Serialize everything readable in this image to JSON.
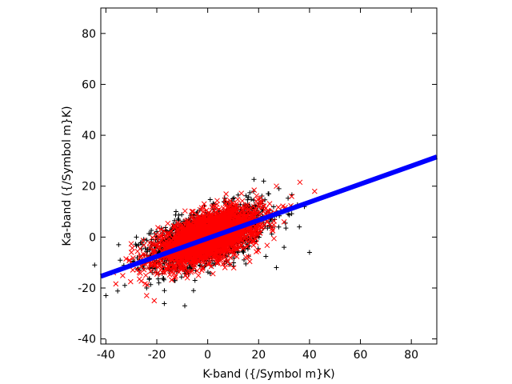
{
  "chart_data": {
    "type": "scatter",
    "title": "",
    "xlabel": "K-band ({/Symbol m}K)",
    "ylabel": "Ka-band ({/Symbol m}K)",
    "xlim": [
      -42,
      90
    ],
    "ylim": [
      -42,
      90
    ],
    "xticks": [
      -40,
      -20,
      0,
      20,
      40,
      60,
      80
    ],
    "yticks": [
      -40,
      -20,
      0,
      20,
      40,
      60,
      80
    ],
    "grid": false,
    "legend": "none",
    "series": [
      {
        "marker": "plus",
        "color": "#000000",
        "distribution": {
          "count": 2000,
          "center": [
            0,
            0
          ],
          "sigma_x": 11,
          "sigma_y": 6,
          "correlation": 0.55
        },
        "outliers": [
          [
            -40,
            -23
          ],
          [
            -35,
            -3
          ],
          [
            -28,
            0
          ],
          [
            -24,
            -20
          ],
          [
            -17,
            -21
          ],
          [
            -9,
            -27
          ],
          [
            -5,
            -17
          ],
          [
            18,
            18
          ],
          [
            22,
            22
          ],
          [
            24,
            17
          ],
          [
            28,
            19
          ],
          [
            30,
            -4
          ],
          [
            33,
            12
          ],
          [
            36,
            4
          ],
          [
            38,
            12
          ],
          [
            40,
            -6
          ],
          [
            27,
            -12
          ]
        ]
      },
      {
        "marker": "x",
        "color": "#ff0000",
        "distribution": {
          "count": 2600,
          "center": [
            0,
            0
          ],
          "sigma_x": 10,
          "sigma_y": 5.5,
          "correlation": 0.6
        },
        "outliers": [
          [
            -24,
            -23
          ],
          [
            -21,
            -25
          ],
          [
            -37,
            -14
          ],
          [
            -30,
            -6
          ],
          [
            42,
            18
          ],
          [
            33,
            16
          ],
          [
            27,
            20
          ],
          [
            30,
            6
          ],
          [
            -8,
            -16
          ],
          [
            15,
            -8
          ]
        ]
      }
    ],
    "fit_line": {
      "color": "#0000ff",
      "x": [
        -42,
        90
      ],
      "y": [
        -15.4,
        31.5
      ]
    }
  }
}
